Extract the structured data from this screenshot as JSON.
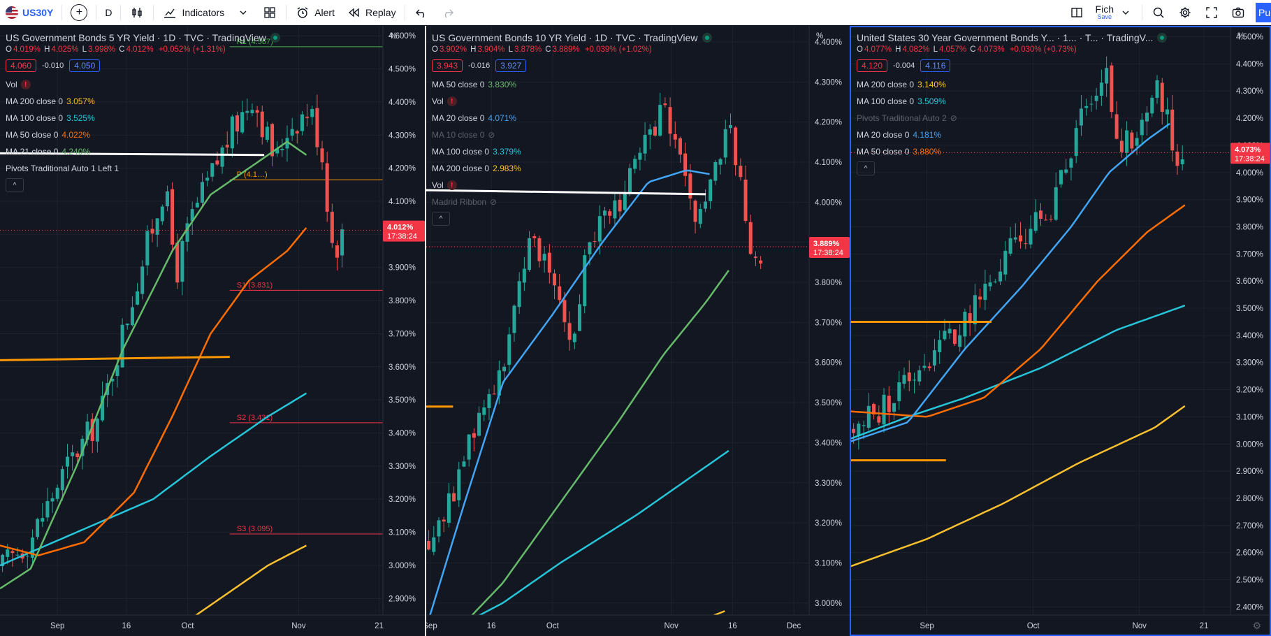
{
  "toolbar": {
    "symbol": "US30Y",
    "interval": "D",
    "indicators_label": "Indicators",
    "alert_label": "Alert",
    "replay_label": "Replay",
    "save_main": "Fich",
    "save_sub": "Save",
    "publish_label": "Pu"
  },
  "panels": [
    {
      "title": "US Government Bonds 5 YR Yield · 1D · TVC · TradingView",
      "ohlc": {
        "o": "4.019%",
        "h": "4.025%",
        "l": "3.998%",
        "c": "4.012%",
        "chg": "+0.052% (+1.31%)"
      },
      "quote": {
        "sell": "4.060",
        "spread": "-0.010",
        "buy": "4.050"
      },
      "indicators": [
        {
          "label": "Vol",
          "value": "",
          "color": "",
          "warn": true,
          "hidden": false
        },
        {
          "label": "MA 200 close 0",
          "value": "3.057%",
          "color": "#fbc02d",
          "warn": false,
          "hidden": false
        },
        {
          "label": "MA 100 close 0",
          "value": "3.525%",
          "color": "#26c6da",
          "warn": false,
          "hidden": false
        },
        {
          "label": "MA 50 close 0",
          "value": "4.022%",
          "color": "#ff6d00",
          "warn": false,
          "hidden": false
        },
        {
          "label": "MA 21 close 0",
          "value": "4.240%",
          "color": "#66bb6a",
          "warn": false,
          "hidden": false
        },
        {
          "label": "Pivots Traditional Auto 1 Left 1",
          "value": "",
          "color": "",
          "warn": false,
          "hidden": false
        }
      ],
      "axis": {
        "unit": "%",
        "ticks": [
          "4.600%",
          "4.500%",
          "4.400%",
          "4.300%",
          "4.200%",
          "4.100%",
          "4.000%",
          "3.900%",
          "3.800%",
          "3.700%",
          "3.600%",
          "3.500%",
          "3.400%",
          "3.300%",
          "3.200%",
          "3.100%",
          "3.000%",
          "2.900%"
        ],
        "ylim": [
          2.85,
          4.63
        ]
      },
      "last_price": "4.012%",
      "countdown": "17:38:24",
      "time_labels": [
        "Sep",
        "16",
        "Oct",
        "Nov",
        "21"
      ],
      "pivots": [
        {
          "label": "R1 (4.567)",
          "value": 4.567,
          "color": "#4caf50"
        },
        {
          "label": "P (4.1…)",
          "value": 4.165,
          "color": "#ff9800"
        },
        {
          "label": "S1 (3.831)",
          "value": 3.831,
          "color": "#f23645"
        },
        {
          "label": "S2 (3.431)",
          "value": 3.431,
          "color": "#f23645"
        },
        {
          "label": "S3 (3.095)",
          "value": 3.095,
          "color": "#f23645"
        }
      ]
    },
    {
      "title": "US Government Bonds 10 YR Yield · 1D · TVC · TradingView",
      "ohlc": {
        "o": "3.902%",
        "h": "3.904%",
        "l": "3.878%",
        "c": "3.889%",
        "chg": "+0.039% (+1.02%)"
      },
      "quote": {
        "sell": "3.943",
        "spread": "-0.016",
        "buy": "3.927"
      },
      "indicators": [
        {
          "label": "MA 50 close 0",
          "value": "3.830%",
          "color": "#66bb6a",
          "warn": false,
          "hidden": false
        },
        {
          "label": "Vol",
          "value": "",
          "color": "",
          "warn": true,
          "hidden": false
        },
        {
          "label": "MA 20 close 0",
          "value": "4.071%",
          "color": "#42a5f5",
          "warn": false,
          "hidden": false
        },
        {
          "label": "MA 10 close 0",
          "value": "",
          "color": "",
          "warn": false,
          "hidden": true
        },
        {
          "label": "MA 100 close 0",
          "value": "3.379%",
          "color": "#26c6da",
          "warn": false,
          "hidden": false
        },
        {
          "label": "MA 200 close 0",
          "value": "2.983%",
          "color": "#fbc02d",
          "warn": false,
          "hidden": false
        },
        {
          "label": "Vol",
          "value": "",
          "color": "",
          "warn": true,
          "hidden": false
        },
        {
          "label": "Madrid Ribbon",
          "value": "",
          "color": "",
          "warn": false,
          "hidden": true
        }
      ],
      "axis": {
        "unit": "%",
        "ticks": [
          "4.400%",
          "4.300%",
          "4.200%",
          "4.100%",
          "4.000%",
          "3.900%",
          "3.800%",
          "3.700%",
          "3.600%",
          "3.500%",
          "3.400%",
          "3.300%",
          "3.200%",
          "3.100%",
          "3.000%"
        ],
        "ylim": [
          2.97,
          4.44
        ]
      },
      "last_price": "3.889%",
      "countdown": "17:38:24",
      "time_labels": [
        "Sep",
        "16",
        "Oct",
        "Nov",
        "16",
        "Dec"
      ]
    },
    {
      "title": "United States 30 Year Government Bonds Y... · 1... · T... · TradingV...",
      "ohlc": {
        "o": "4.077%",
        "h": "4.082%",
        "l": "4.057%",
        "c": "4.073%",
        "chg": "+0.030% (+0.73%)"
      },
      "quote": {
        "sell": "4.120",
        "spread": "-0.004",
        "buy": "4.116"
      },
      "indicators": [
        {
          "label": "MA 200 close 0",
          "value": "3.140%",
          "color": "#fbc02d",
          "warn": false,
          "hidden": false
        },
        {
          "label": "MA 100 close 0",
          "value": "3.509%",
          "color": "#26c6da",
          "warn": false,
          "hidden": false
        },
        {
          "label": "Pivots Traditional Auto 2",
          "value": "",
          "color": "",
          "warn": false,
          "hidden": true
        },
        {
          "label": "MA 20 close 0",
          "value": "4.181%",
          "color": "#42a5f5",
          "warn": false,
          "hidden": false
        },
        {
          "label": "MA 50 close 0",
          "value": "3.880%",
          "color": "#ff6d00",
          "warn": false,
          "hidden": false
        }
      ],
      "axis": {
        "unit": "%",
        "ticks": [
          "4.500%",
          "4.400%",
          "4.300%",
          "4.200%",
          "4.100%",
          "4.000%",
          "3.900%",
          "3.800%",
          "3.700%",
          "3.600%",
          "3.500%",
          "3.400%",
          "3.300%",
          "3.200%",
          "3.100%",
          "3.000%",
          "2.900%",
          "2.800%",
          "2.700%",
          "2.600%",
          "2.500%",
          "2.400%"
        ],
        "ylim": [
          2.37,
          4.54
        ]
      },
      "last_price": "4.073%",
      "countdown": "17:38:24",
      "time_labels": [
        "Sep",
        "Oct",
        "Nov",
        "21"
      ]
    }
  ],
  "colors": {
    "background": "#131722",
    "up": "#26a69a",
    "down": "#ef5350",
    "grid": "#1e222d",
    "text": "#d1d4dc",
    "accent": "#2962ff"
  },
  "chart_data": [
    {
      "type": "candlestick",
      "title": "US Government Bonds 5 YR Yield · 1D · TVC · TradingView",
      "ylim": [
        2.85,
        4.63
      ],
      "x": [
        "Sep",
        "16",
        "Oct",
        "Nov",
        "21"
      ],
      "series": [
        {
          "name": "MA 200 close 0",
          "last": 3.057
        },
        {
          "name": "MA 100 close 0",
          "last": 3.525
        },
        {
          "name": "MA 50 close 0",
          "last": 4.022
        },
        {
          "name": "MA 21 close 0",
          "last": 4.24
        }
      ],
      "last_close": 4.012
    },
    {
      "type": "candlestick",
      "title": "US Government Bonds 10 YR Yield · 1D · TVC · TradingView",
      "ylim": [
        2.97,
        4.44
      ],
      "x": [
        "Sep",
        "16",
        "Oct",
        "Nov",
        "16",
        "Dec"
      ],
      "series": [
        {
          "name": "MA 50 close 0",
          "last": 3.83
        },
        {
          "name": "MA 20 close 0",
          "last": 4.071
        },
        {
          "name": "MA 100 close 0",
          "last": 3.379
        },
        {
          "name": "MA 200 close 0",
          "last": 2.983
        }
      ],
      "last_close": 3.889
    },
    {
      "type": "candlestick",
      "title": "United States 30 Year Government Bonds Y... · 1... · T... · TradingV...",
      "ylim": [
        2.37,
        4.54
      ],
      "x": [
        "Sep",
        "Oct",
        "Nov",
        "21"
      ],
      "series": [
        {
          "name": "MA 200 close 0",
          "last": 3.14
        },
        {
          "name": "MA 100 close 0",
          "last": 3.509
        },
        {
          "name": "MA 20 close 0",
          "last": 4.181
        },
        {
          "name": "MA 50 close 0",
          "last": 3.88
        }
      ],
      "last_close": 4.073
    }
  ]
}
